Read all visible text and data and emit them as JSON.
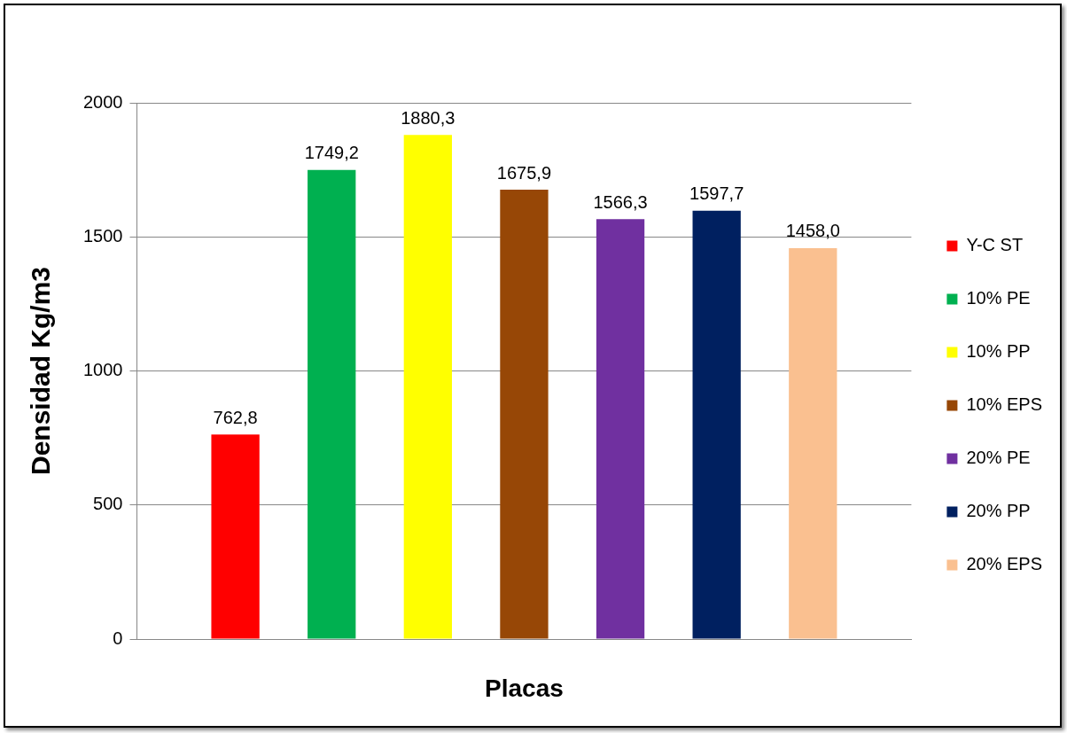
{
  "chart_data": {
    "type": "bar",
    "xlabel": "Placas",
    "ylabel": "Densidad Kg/m3",
    "categories": [
      null
    ],
    "series": [
      {
        "name": "Y-C ST",
        "color": "#ff0000",
        "values": [
          762.8
        ],
        "value_labels": [
          "762,8"
        ]
      },
      {
        "name": "10% PE",
        "color": "#00b050",
        "values": [
          1749.2
        ],
        "value_labels": [
          "1749,2"
        ]
      },
      {
        "name": "10% PP",
        "color": "#ffff00",
        "values": [
          1880.3
        ],
        "value_labels": [
          "1880,3"
        ]
      },
      {
        "name": "10% EPS",
        "color": "#974706",
        "values": [
          1675.9
        ],
        "value_labels": [
          "1675,9"
        ]
      },
      {
        "name": "20% PE",
        "color": "#7030a0",
        "values": [
          1566.3
        ],
        "value_labels": [
          "1566,3"
        ]
      },
      {
        "name": "20% PP",
        "color": "#002060",
        "values": [
          1597.7
        ],
        "value_labels": [
          "1597,7"
        ]
      },
      {
        "name": "20% EPS",
        "color": "#fac090",
        "values": [
          1458.0
        ],
        "value_labels": [
          "1458,0"
        ]
      }
    ],
    "ylim": [
      0,
      2000
    ],
    "yticks": [
      0,
      500,
      1000,
      1500,
      2000
    ],
    "grid": "y",
    "legend": "right"
  }
}
